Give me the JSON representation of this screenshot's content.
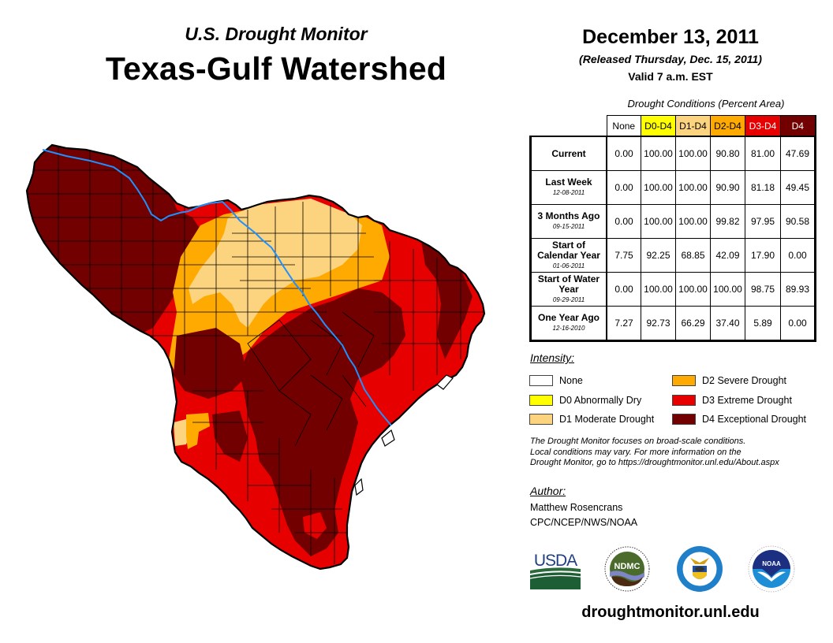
{
  "header": {
    "subtitle": "U.S. Drought Monitor",
    "title": "Texas-Gulf Watershed"
  },
  "dates": {
    "map_date": "December 13, 2011",
    "released": "(Released Thursday, Dec. 15, 2011)",
    "valid": "Valid 7 a.m. EST"
  },
  "table": {
    "caption": "Drought Conditions (Percent Area)",
    "columns": [
      {
        "label": "None",
        "bg": "#ffffff",
        "fg": "#000000"
      },
      {
        "label": "D0-D4",
        "bg": "#ffff00",
        "fg": "#000000"
      },
      {
        "label": "D1-D4",
        "bg": "#fcd37f",
        "fg": "#000000"
      },
      {
        "label": "D2-D4",
        "bg": "#ffaa00",
        "fg": "#000000"
      },
      {
        "label": "D3-D4",
        "bg": "#e60000",
        "fg": "#ffffff"
      },
      {
        "label": "D4",
        "bg": "#730000",
        "fg": "#ffffff"
      }
    ],
    "rows": [
      {
        "label": "Current",
        "date": "",
        "values": [
          "0.00",
          "100.00",
          "100.00",
          "90.80",
          "81.00",
          "47.69"
        ]
      },
      {
        "label": "Last Week",
        "date": "12-08-2011",
        "values": [
          "0.00",
          "100.00",
          "100.00",
          "90.90",
          "81.18",
          "49.45"
        ]
      },
      {
        "label": "3 Months Ago",
        "date": "09-15-2011",
        "values": [
          "0.00",
          "100.00",
          "100.00",
          "99.82",
          "97.95",
          "90.58"
        ]
      },
      {
        "label": "Start of Calendar Year",
        "date": "01-06-2011",
        "values": [
          "7.75",
          "92.25",
          "68.85",
          "42.09",
          "17.90",
          "0.00"
        ]
      },
      {
        "label": "Start of Water Year",
        "date": "09-29-2011",
        "values": [
          "0.00",
          "100.00",
          "100.00",
          "100.00",
          "98.75",
          "89.93"
        ]
      },
      {
        "label": "One Year Ago",
        "date": "12-16-2010",
        "values": [
          "7.27",
          "92.73",
          "66.29",
          "37.40",
          "5.89",
          "0.00"
        ]
      }
    ]
  },
  "legend": {
    "title": "Intensity:",
    "items": [
      {
        "label": "None",
        "color": "#ffffff"
      },
      {
        "label": "D0 Abnormally Dry",
        "color": "#ffff00"
      },
      {
        "label": "D1 Moderate Drought",
        "color": "#fcd37f"
      },
      {
        "label": "D2 Severe Drought",
        "color": "#ffaa00"
      },
      {
        "label": "D3 Extreme Drought",
        "color": "#e60000"
      },
      {
        "label": "D4 Exceptional Drought",
        "color": "#730000"
      }
    ]
  },
  "disclaimer": [
    "The Drought Monitor focuses on broad-scale conditions.",
    "Local conditions may vary. For more information on the",
    "Drought Monitor, go to https://droughtmonitor.unl.edu/About.aspx"
  ],
  "author": {
    "title": "Author:",
    "name": "Matthew Rosencrans",
    "org": "CPC/NCEP/NWS/NOAA"
  },
  "logos": {
    "usda": "USDA",
    "ndmc": "NDMC",
    "noaa": "NOAA"
  },
  "site_url": "droughtmonitor.unl.edu",
  "map": {
    "region": "Texas-Gulf Watershed",
    "river_color": "#1e90ff",
    "fill_colors": {
      "D1": "#fcd37f",
      "D2": "#ffaa00",
      "D3": "#e60000",
      "D4": "#730000"
    }
  }
}
